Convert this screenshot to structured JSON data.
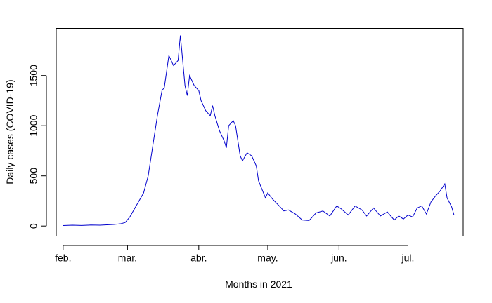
{
  "chart_data": {
    "type": "line",
    "title": "",
    "xlabel": "Months in 2021",
    "ylabel": "Daily cases (COVID-19)",
    "x_ticks": [
      {
        "date": "2021-02-01",
        "label": "feb."
      },
      {
        "date": "2021-03-01",
        "label": "mar."
      },
      {
        "date": "2021-04-01",
        "label": "abr."
      },
      {
        "date": "2021-05-01",
        "label": "may."
      },
      {
        "date": "2021-06-01",
        "label": "jun."
      },
      {
        "date": "2021-07-01",
        "label": "jul."
      }
    ],
    "y_ticks": [
      0,
      500,
      1000,
      1500
    ],
    "xlim": [
      "2021-01-29",
      "2021-07-25"
    ],
    "ylim": [
      -100,
      1970
    ],
    "grid": false,
    "legend": "none",
    "series_color": "#0000CC",
    "series": [
      {
        "name": "",
        "x": [
          "2021-02-01",
          "2021-02-05",
          "2021-02-09",
          "2021-02-13",
          "2021-02-17",
          "2021-02-20",
          "2021-02-23",
          "2021-02-26",
          "2021-02-28",
          "2021-03-02",
          "2021-03-04",
          "2021-03-06",
          "2021-03-08",
          "2021-03-10",
          "2021-03-12",
          "2021-03-14",
          "2021-03-16",
          "2021-03-17",
          "2021-03-19",
          "2021-03-21",
          "2021-03-23",
          "2021-03-24",
          "2021-03-26",
          "2021-03-27",
          "2021-03-28",
          "2021-03-29",
          "2021-03-30",
          "2021-04-01",
          "2021-04-02",
          "2021-04-04",
          "2021-04-06",
          "2021-04-07",
          "2021-04-08",
          "2021-04-10",
          "2021-04-12",
          "2021-04-13",
          "2021-04-14",
          "2021-04-16",
          "2021-04-17",
          "2021-04-19",
          "2021-04-20",
          "2021-04-22",
          "2021-04-24",
          "2021-04-26",
          "2021-04-27",
          "2021-04-30",
          "2021-05-01",
          "2021-05-03",
          "2021-05-06",
          "2021-05-08",
          "2021-05-10",
          "2021-05-13",
          "2021-05-16",
          "2021-05-19",
          "2021-05-22",
          "2021-05-25",
          "2021-05-28",
          "2021-05-31",
          "2021-06-02",
          "2021-06-05",
          "2021-06-08",
          "2021-06-11",
          "2021-06-13",
          "2021-06-16",
          "2021-06-19",
          "2021-06-22",
          "2021-06-25",
          "2021-06-27",
          "2021-06-29",
          "2021-07-01",
          "2021-07-03",
          "2021-07-05",
          "2021-07-07",
          "2021-07-09",
          "2021-07-11",
          "2021-07-13",
          "2021-07-15",
          "2021-07-17",
          "2021-07-18",
          "2021-07-20",
          "2021-07-21"
        ],
        "values": [
          5,
          8,
          6,
          10,
          8,
          12,
          15,
          22,
          35,
          90,
          170,
          250,
          330,
          500,
          800,
          1100,
          1350,
          1380,
          1700,
          1600,
          1650,
          1900,
          1400,
          1300,
          1500,
          1450,
          1400,
          1350,
          1250,
          1150,
          1100,
          1200,
          1100,
          950,
          850,
          780,
          1000,
          1050,
          1000,
          700,
          650,
          730,
          700,
          600,
          450,
          280,
          330,
          270,
          200,
          150,
          160,
          120,
          60,
          55,
          130,
          150,
          100,
          200,
          170,
          110,
          200,
          160,
          100,
          180,
          100,
          140,
          60,
          100,
          70,
          110,
          90,
          180,
          200,
          120,
          240,
          300,
          350,
          420,
          280,
          190,
          110
        ]
      }
    ]
  }
}
